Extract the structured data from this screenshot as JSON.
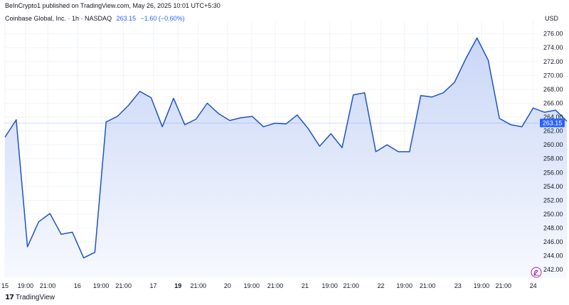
{
  "header": {
    "attribution": "BeInCrypto1 published on TradingView.com, May 26, 2025 10:01 UTC+5:30",
    "symbol": "Coinbase Global, Inc. · 1h · NASDAQ",
    "last_price": "263.15",
    "change": "−1.60 (−0.60%)",
    "currency": "USD"
  },
  "footer": {
    "logo_text": "TradingView",
    "logo_mark": "17"
  },
  "colors": {
    "line": "#1e53c7",
    "fill_top": "#c9d6f6",
    "fill_bottom": "#f7f9fe",
    "price_label": "#2962ff",
    "grid": "#f0f3fa",
    "fab": "#9c27b0"
  },
  "chart_data": {
    "type": "area",
    "title": "Coinbase Global, Inc. · 1h · NASDAQ",
    "xlabel": "",
    "ylabel": "",
    "ylim": [
      240.5,
      277.5
    ],
    "y_ticks": [
      242,
      244,
      246,
      248,
      250,
      252,
      254,
      256,
      258,
      260,
      262,
      264,
      266,
      268,
      270,
      272,
      274,
      276
    ],
    "y_tick_labels": [
      "242.00",
      "244.00",
      "246.00",
      "248.00",
      "250.00",
      "252.00",
      "254.00",
      "256.00",
      "258.00",
      "260.00",
      "262.00",
      "264.00",
      "266.00",
      "268.00",
      "270.00",
      "272.00",
      "274.00",
      "276.00"
    ],
    "x_tick_labels": [
      "15",
      "19:00",
      "21:00",
      "16",
      "19:00",
      "21:00",
      "17",
      "19",
      "21:00",
      "20",
      "19:00",
      "21:00",
      "21",
      "19:00",
      "21:00",
      "22",
      "19:00",
      "21:00",
      "23",
      "19:00",
      "21:00",
      "24"
    ],
    "x_tick_index": [
      0,
      1.83,
      3.8,
      6.45,
      8.55,
      10.55,
      13.2,
      15.4,
      17.2,
      19.8,
      21.95,
      24.05,
      26.7,
      28.9,
      30.8,
      33.45,
      35.55,
      37.6,
      40.3,
      42.4,
      44.35,
      47.0
    ],
    "bold_tick_labels": [
      "19"
    ],
    "last_value": 263.15,
    "grid": true,
    "series": [
      {
        "values": [
          261.1,
          263.6,
          245.3,
          248.9,
          250.1,
          247.1,
          247.4,
          243.7,
          244.5,
          263.3,
          264.1,
          265.7,
          267.7,
          266.8,
          262.6,
          266.7,
          262.9,
          263.7,
          266.0,
          264.5,
          263.5,
          263.9,
          264.1,
          262.6,
          263.1,
          263.0,
          264.3,
          262.3,
          259.8,
          261.6,
          259.6,
          267.2,
          267.5,
          259.0,
          260.0,
          259.0,
          259.0,
          267.1,
          266.9,
          267.5,
          269.0,
          272.4,
          275.4,
          272.2,
          263.8,
          262.9,
          262.6,
          265.3,
          264.7,
          265.0,
          263.4
        ]
      }
    ]
  }
}
